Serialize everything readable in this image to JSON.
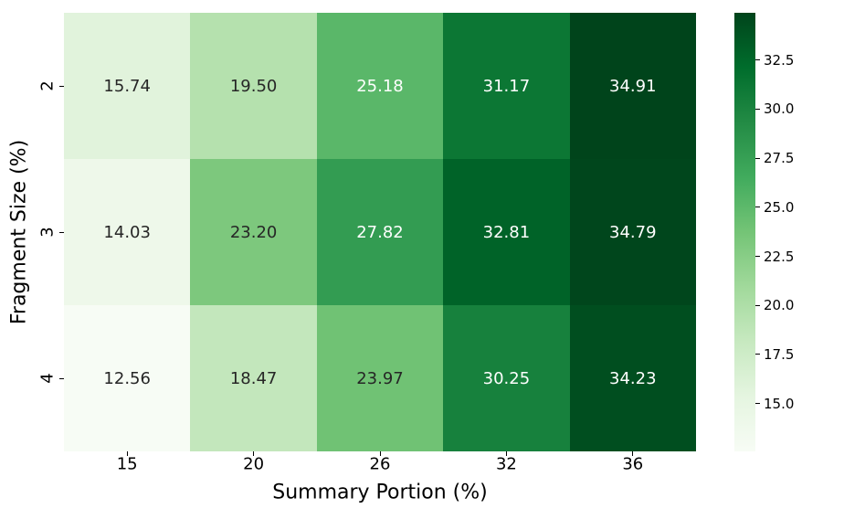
{
  "figure": {
    "background": "#ffffff"
  },
  "chart_data": {
    "type": "heatmap",
    "title": "",
    "xlabel": "Summary Portion (%)",
    "ylabel": "Fragment Size (%)",
    "x_tick_labels": [
      "15",
      "20",
      "26",
      "32",
      "36"
    ],
    "y_tick_labels": [
      "2",
      "3",
      "4"
    ],
    "rows": [
      [
        15.74,
        19.5,
        25.18,
        31.17,
        34.91
      ],
      [
        14.03,
        23.2,
        27.82,
        32.81,
        34.79
      ],
      [
        12.56,
        18.47,
        23.97,
        30.25,
        34.23
      ]
    ],
    "value_decimals": 2,
    "vmin": 12.56,
    "vmax": 34.91,
    "grid": false,
    "legend_position": "colorbar-right",
    "colormap": {
      "name": "Greens",
      "stops": [
        "#f7fcf5",
        "#e5f5e0",
        "#c7e9c0",
        "#a1d99b",
        "#74c476",
        "#41ab5d",
        "#238b45",
        "#006d2c",
        "#00441b"
      ]
    },
    "colorbar": {
      "tick_labels": [
        "32.5",
        "30.0",
        "27.5",
        "25.0",
        "22.5",
        "20.0",
        "17.5",
        "15.0"
      ]
    },
    "annotation_colors": {
      "dark": "#262626",
      "light": "#ffffff"
    }
  }
}
